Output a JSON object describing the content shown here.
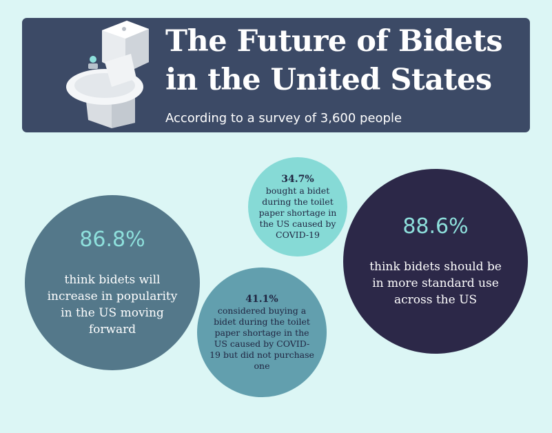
{
  "header": {
    "title_line1": "The Future of Bidets",
    "title_line2": "in the United States",
    "subtitle": "According to a survey of 3,600 people",
    "illustration": "toilet-with-bidet-seat-icon"
  },
  "stats": {
    "increase_popularity": {
      "percent": "86.8%",
      "text": "think bidets will increase in popularity in the US moving forward"
    },
    "bought_bidet": {
      "percent": "34.7%",
      "text": "bought a bidet during the toilet paper shortage in the US caused by COVID-19"
    },
    "considered_buying": {
      "percent": "41.1%",
      "text": "considered buying a bidet during the toilet paper shortage in the US caused by COVID-19 but did not purchase one"
    },
    "more_standard_use": {
      "percent": "88.6%",
      "text": "think bidets should be in more standard use across the US"
    }
  },
  "colors": {
    "background": "#dcf6f5",
    "banner": "#3c4a66",
    "circle_slate": "#54788a",
    "circle_mint": "#86dad6",
    "circle_teal": "#629fae",
    "circle_navy": "#2c2848",
    "accent_text": "#8ee0dc"
  }
}
